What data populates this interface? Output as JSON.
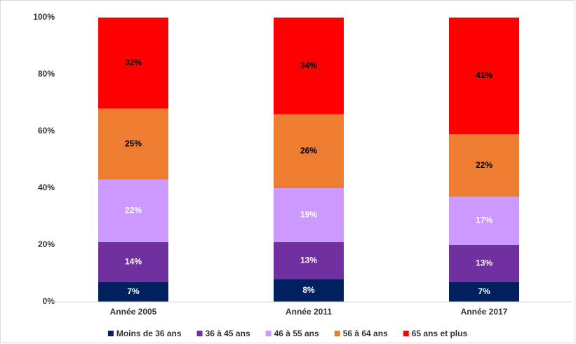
{
  "chart_data": {
    "type": "stacked_bar",
    "categories": [
      "Année 2005",
      "Année 2011",
      "Année 2017"
    ],
    "series": [
      {
        "name": "Moins de 36 ans",
        "color": "#002060",
        "label_color": "#ffffff",
        "values": [
          7,
          8,
          7
        ],
        "value_labels": [
          "7%",
          "8%",
          "7%"
        ]
      },
      {
        "name": "36 à 45 ans",
        "color": "#7030a0",
        "label_color": "#ffffff",
        "values": [
          14,
          13,
          13
        ],
        "value_labels": [
          "14%",
          "13%",
          "13%"
        ]
      },
      {
        "name": "46 à 55 ans",
        "color": "#cc99ff",
        "label_color": "#ffffff",
        "values": [
          22,
          19,
          17
        ],
        "value_labels": [
          "22%",
          "19%",
          "17%"
        ]
      },
      {
        "name": "56 à 64 ans",
        "color": "#ed7d31",
        "label_color": "#000000",
        "values": [
          25,
          26,
          22
        ],
        "value_labels": [
          "25%",
          "26%",
          "22%"
        ]
      },
      {
        "name": "65 ans et plus",
        "color": "#ff0000",
        "label_color": "#000000",
        "values": [
          32,
          34,
          41
        ],
        "value_labels": [
          "32%",
          "34%",
          "41%"
        ]
      }
    ],
    "ylim": [
      0,
      100
    ],
    "yticks": [
      {
        "value": 0,
        "label": "0%"
      },
      {
        "value": 20,
        "label": "20%"
      },
      {
        "value": 40,
        "label": "40%"
      },
      {
        "value": 60,
        "label": "60%"
      },
      {
        "value": 80,
        "label": "80%"
      },
      {
        "value": 100,
        "label": "100%"
      }
    ],
    "grid": false,
    "legend": "bottom"
  }
}
